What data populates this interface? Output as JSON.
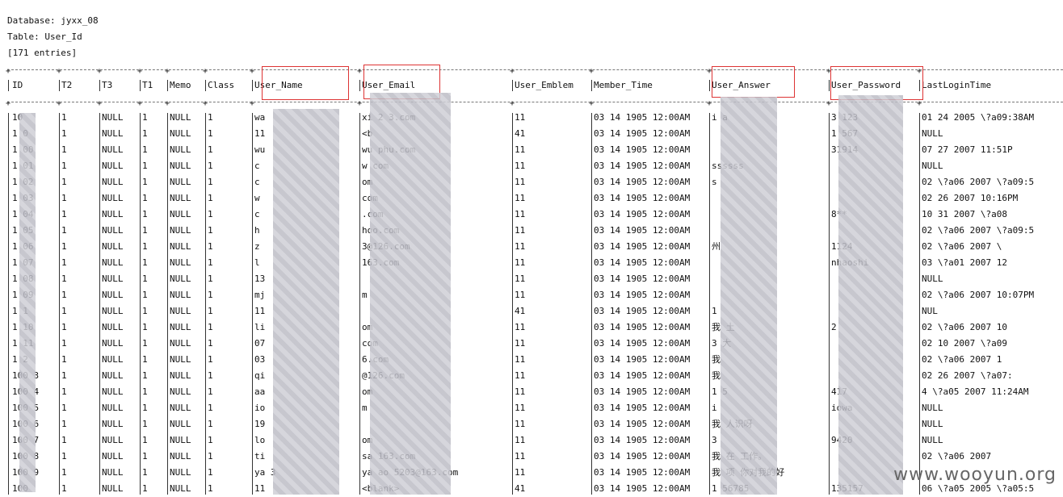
{
  "header": {
    "database": "Database: jyxx_08",
    "table": "Table: User_Id",
    "entries": "[171 entries]"
  },
  "columns": [
    "ID",
    "T2",
    "T3",
    "T1",
    "Memo",
    "Class",
    "User_Name",
    "User_Email",
    "User_Emblem",
    "Member_Time",
    "User_Answer",
    "User_Password",
    "LastLoginTime"
  ],
  "highlighted_columns": [
    "User_Name",
    "User_Email",
    "User_Answer",
    "User_Password"
  ],
  "rows": [
    [
      "10",
      "1",
      "NULL",
      "1",
      "NULL",
      "1",
      "wa",
      "xi   2   3.com",
      "11",
      "03 14 1905 12:00AM",
      "i a",
      "3   123",
      "01 24 2005 \\?a09:38AM"
    ],
    [
      "1 0",
      "1",
      "NULL",
      "1",
      "NULL",
      "1",
      "11",
      "<b",
      "41",
      "03 14 1905 12:00AM",
      "",
      "1   567",
      "NULL"
    ],
    [
      "1 00",
      "1",
      "NULL",
      "1",
      "NULL",
      "1",
      "wu",
      "wu   phu.com",
      "11",
      "03 14 1905 12:00AM",
      "",
      "   31914",
      "07 27 2007 11:51P"
    ],
    [
      "1 01",
      "1",
      "NULL",
      "1",
      "NULL",
      "1",
      "c",
      "w   com",
      "11",
      "03 14 1905 12:00AM",
      "   ssssss",
      "",
      "NULL"
    ],
    [
      "1 02",
      "1",
      "NULL",
      "1",
      "NULL",
      "1",
      "c",
      "   om",
      "11",
      "03 14 1905 12:00AM",
      "   s",
      "",
      "02 \\?a06 2007 \\?a09:5"
    ],
    [
      "1 03",
      "1",
      "NULL",
      "1",
      "NULL",
      "1",
      "w",
      "   com",
      "11",
      "03 14 1905 12:00AM",
      "",
      "",
      "02 26 2007 10:16PM"
    ],
    [
      "1 04",
      "1",
      "NULL",
      "1",
      "NULL",
      "1",
      "c",
      "   .com",
      "11",
      "03 14 1905 12:00AM",
      "",
      "   8**",
      "10 31 2007 \\?a08"
    ],
    [
      "1 05",
      "1",
      "NULL",
      "1",
      "NULL",
      "1",
      "h",
      "   hoo.com",
      "11",
      "03 14 1905 12:00AM",
      "",
      "",
      "02 \\?a06 2007 \\?a09:5"
    ],
    [
      "1 06",
      "1",
      "NULL",
      "1",
      "NULL",
      "1",
      "z",
      "   3@126.com",
      "11",
      "03 14 1905 12:00AM",
      "   州",
      "   1124",
      "02 \\?a06 2007 \\"
    ],
    [
      "1 07",
      "1",
      "NULL",
      "1",
      "NULL",
      "1",
      "l",
      "   163.com",
      "11",
      "03 14 1905 12:00AM",
      "",
      "   nhaoshi",
      "03 \\?a01 2007 12"
    ],
    [
      "1 08",
      "1",
      "NULL",
      "1",
      "NULL",
      "1",
      "13",
      "",
      "11",
      "03 14 1905 12:00AM",
      "",
      "",
      "NULL"
    ],
    [
      "1 09",
      "1",
      "NULL",
      "1",
      "NULL",
      "1",
      "mj",
      "   m",
      "11",
      "03 14 1905 12:00AM",
      "",
      "",
      "02 \\?a06 2007 10:07PM"
    ],
    [
      "1 1",
      "1",
      "NULL",
      "1",
      "NULL",
      "1",
      "11",
      "",
      "41",
      "03 14 1905 12:00AM",
      "1",
      "",
      "NUL"
    ],
    [
      "1 10",
      "1",
      "NULL",
      "1",
      "NULL",
      "1",
      "li",
      "   om",
      "11",
      "03 14 1905 12:00AM",
      "我   土",
      "   2",
      "02 \\?a06 2007 10"
    ],
    [
      "1 11",
      "1",
      "NULL",
      "1",
      "NULL",
      "1",
      "07",
      "   com",
      "11",
      "03 14 1905 12:00AM",
      "3   大",
      "",
      "02 10 2007 \\?a09"
    ],
    [
      "1 2",
      "1",
      "NULL",
      "1",
      "NULL",
      "1",
      "03",
      "   6.com",
      "11",
      "03 14 1905 12:00AM",
      "我   ",
      "",
      "02 \\?a06 2007 1"
    ],
    [
      "100 3",
      "1",
      "NULL",
      "1",
      "NULL",
      "1",
      "qi",
      "   @126.com",
      "11",
      "03 14 1905 12:00AM",
      "我",
      "",
      "02 26 2007 \\?a07:"
    ],
    [
      "100 4",
      "1",
      "NULL",
      "1",
      "NULL",
      "1",
      "aa",
      "   om",
      "11",
      "03 14 1905 12:00AM",
      "1   5",
      "417",
      "   4 \\?a05 2007 11:24AM"
    ],
    [
      "100 5",
      "1",
      "NULL",
      "1",
      "NULL",
      "1",
      "io",
      "   m",
      "11",
      "03 14 1905 12:00AM",
      "i",
      "iowa",
      "NULL"
    ],
    [
      "100 6",
      "1",
      "NULL",
      "1",
      "NULL",
      "1",
      "19",
      "",
      "11",
      "03 14 1905 12:00AM",
      "我   人识呀",
      "",
      "NULL"
    ],
    [
      "100 7",
      "1",
      "NULL",
      "1",
      "NULL",
      "1",
      "lo",
      "   om",
      "11",
      "03 14 1905 12:00AM",
      "3",
      "9420",
      "NULL"
    ],
    [
      "100 8",
      "1",
      "NULL",
      "1",
      "NULL",
      "1",
      "ti",
      "sa   163.com",
      "11",
      "03 14 1905 12:00AM",
      "我   在   工作。",
      "",
      "02 \\?a06 2007"
    ],
    [
      "100 9",
      "1",
      "NULL",
      "1",
      "NULL",
      "1",
      "ya   3",
      "ya   ao   5203@163.com",
      "11",
      "03 14 1905 12:00AM",
      "我   项   你对我的好",
      "",
      ""
    ],
    [
      "100 ",
      "1",
      "NULL",
      "1",
      "NULL",
      "1",
      "11",
      "<blank>",
      "41",
      "03 14 1905 12:00AM",
      "1   56785",
      "135157",
      "06 \\?a05 2005 \\?a05:5"
    ]
  ],
  "watermark": "www.wooyun.org"
}
